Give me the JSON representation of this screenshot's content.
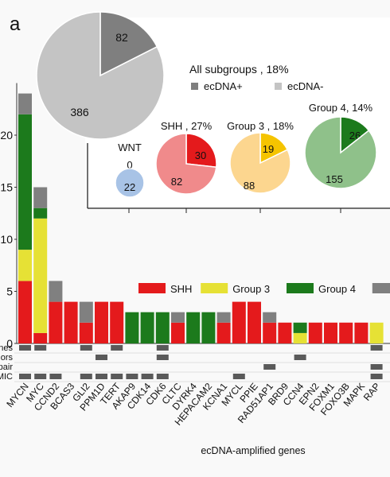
{
  "panel_label": "a",
  "chart_data": [
    {
      "type": "bar",
      "stacked": true,
      "xlabel": "ecDNA-amplified genes",
      "ylabel": "",
      "ylim": [
        0,
        25
      ],
      "yticks": [
        "0",
        "5",
        "10",
        "15",
        "20"
      ],
      "categories": [
        "MYCN",
        "MYC",
        "CCND2",
        "BCAS3",
        "GLI2",
        "PPM1D",
        "TERT",
        "AKAP9",
        "CDK14",
        "CDK6",
        "CLTC",
        "DYRK4",
        "HEPACAM2",
        "KCNA1",
        "MYCL",
        "PPIE",
        "RAD51AP1",
        "BRD9",
        "CCN4",
        "EPN2",
        "FOXM1",
        "FOXO3B",
        "MAPK",
        "RAP"
      ],
      "series": [
        {
          "name": "SHH",
          "color": "#e41a1c",
          "values": [
            6,
            1,
            4,
            4,
            2,
            4,
            4,
            0,
            0,
            0,
            2,
            0,
            0,
            2,
            4,
            4,
            2,
            2,
            0,
            2,
            2,
            2,
            2,
            0
          ]
        },
        {
          "name": "Group 3",
          "color": "#e6e135",
          "values": [
            3,
            11,
            0,
            0,
            0,
            0,
            0,
            0,
            0,
            0,
            0,
            0,
            0,
            0,
            0,
            0,
            0,
            0,
            1,
            0,
            0,
            0,
            0,
            2
          ]
        },
        {
          "name": "Group 4",
          "color": "#1c7a1c",
          "values": [
            13,
            1,
            0,
            0,
            0,
            0,
            0,
            3,
            3,
            3,
            0,
            3,
            3,
            0,
            0,
            0,
            0,
            0,
            1,
            0,
            0,
            0,
            0,
            0
          ]
        },
        {
          "name": "",
          "color": "#808080",
          "values": [
            2,
            2,
            2,
            0,
            2,
            0,
            0,
            0,
            0,
            0,
            1,
            0,
            0,
            1,
            0,
            0,
            1,
            0,
            0,
            0,
            0,
            0,
            0,
            0
          ]
        }
      ],
      "legend": "top-right",
      "annotation_rows": [
        {
          "label": "nes",
          "cells": [
            1,
            1,
            0,
            0,
            1,
            0,
            1,
            0,
            0,
            1,
            0,
            0,
            0,
            0,
            0,
            0,
            0,
            0,
            0,
            0,
            0,
            0,
            0,
            1
          ]
        },
        {
          "label": "ors",
          "cells": [
            0,
            0,
            0,
            0,
            0,
            1,
            0,
            0,
            0,
            1,
            0,
            0,
            0,
            0,
            0,
            0,
            0,
            0,
            1,
            0,
            0,
            0,
            0,
            0
          ]
        },
        {
          "label": "pair",
          "cells": [
            0,
            0,
            0,
            0,
            0,
            0,
            0,
            0,
            0,
            0,
            0,
            0,
            0,
            0,
            0,
            0,
            1,
            0,
            0,
            0,
            0,
            0,
            0,
            1
          ]
        },
        {
          "label": "MIC",
          "cells": [
            1,
            1,
            1,
            0,
            1,
            1,
            1,
            1,
            1,
            1,
            0,
            0,
            0,
            0,
            1,
            0,
            0,
            0,
            0,
            0,
            0,
            0,
            0,
            1
          ]
        }
      ]
    },
    {
      "type": "pie",
      "title": "All subgroups , 18%",
      "slices": [
        {
          "label": "ecDNA+",
          "value": 82,
          "color": "#7f7f7f"
        },
        {
          "label": "ecDNA-",
          "value": 386,
          "color": "#c4c4c4"
        }
      ]
    },
    {
      "type": "pie",
      "title": "WNT",
      "slices": [
        {
          "label": "ecDNA+",
          "value": 0,
          "color": "#4a6fa5"
        },
        {
          "label": "ecDNA-",
          "value": 22,
          "color": "#a8c3e6"
        }
      ]
    },
    {
      "type": "pie",
      "title": "SHH , 27%",
      "slices": [
        {
          "label": "ecDNA+",
          "value": 30,
          "color": "#e41a1c"
        },
        {
          "label": "ecDNA-",
          "value": 82,
          "color": "#f08a8b"
        }
      ]
    },
    {
      "type": "pie",
      "title": "Group 3 , 18%",
      "slices": [
        {
          "label": "ecDNA+",
          "value": 19,
          "color": "#f5c400"
        },
        {
          "label": "ecDNA-",
          "value": 88,
          "color": "#fcd68f"
        }
      ]
    },
    {
      "type": "pie",
      "title": "Group 4, 14%",
      "slices": [
        {
          "label": "ecDNA+",
          "value": 26,
          "color": "#1c7a1c"
        },
        {
          "label": "ecDNA-",
          "value": 155,
          "color": "#8fc18a"
        }
      ]
    }
  ]
}
